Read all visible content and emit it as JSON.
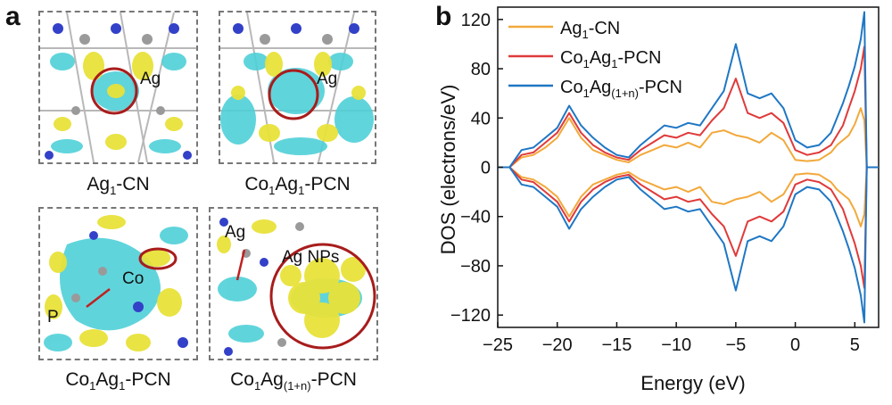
{
  "panel_a": {
    "letter": "a",
    "thumbs": [
      {
        "caption_parts": [
          "Ag",
          "1",
          "-CN"
        ],
        "labels": [
          "Ag"
        ]
      },
      {
        "caption_parts": [
          "Co",
          "1",
          "Ag",
          "1",
          "-PCN"
        ],
        "labels": [
          "Ag"
        ]
      },
      {
        "caption_parts": [
          "Co",
          "1",
          "Ag",
          "1",
          "-PCN"
        ],
        "labels": [
          "Co",
          "P"
        ]
      },
      {
        "caption_parts": [
          "Co",
          "1",
          "Ag",
          "(1+n)",
          "-PCN"
        ],
        "labels": [
          "Ag",
          "Ag NPs"
        ]
      }
    ],
    "colors": {
      "isosurface_yellow": "#e8e23a",
      "isosurface_cyan": "#4fd0d8",
      "atom_blue": "#3340c8",
      "atom_gray": "#9a9a9a",
      "circle_red": "#a81c1c"
    }
  },
  "panel_b": {
    "letter": "b"
  },
  "chart_data": {
    "type": "line",
    "title": "",
    "xlabel": "Energy (eV)",
    "ylabel": "DOS (electrons/eV)",
    "xlim": [
      -25,
      7
    ],
    "ylim": [
      -130,
      130
    ],
    "xticks": [
      -25,
      -20,
      -15,
      -10,
      -5,
      0,
      5
    ],
    "yticks": [
      -120,
      -80,
      -40,
      0,
      40,
      80,
      120
    ],
    "legend_placement": "top-left",
    "series": [
      {
        "name_parts": [
          "Ag",
          "1",
          "-CN"
        ],
        "color": "#f2a93b",
        "x": [
          -25,
          -24,
          -23,
          -22,
          -21,
          -20,
          -19,
          -18,
          -17,
          -16,
          -15,
          -14,
          -13,
          -12,
          -11,
          -10,
          -9,
          -8,
          -7,
          -6,
          -5,
          -4,
          -3,
          -2,
          -1,
          0,
          1,
          2,
          3,
          3.5,
          4,
          4.5,
          5,
          5.5,
          5.8,
          6,
          7
        ],
        "y": [
          0,
          0,
          8,
          10,
          16,
          24,
          40,
          24,
          14,
          10,
          6,
          4,
          10,
          14,
          18,
          16,
          20,
          16,
          28,
          30,
          26,
          24,
          20,
          28,
          22,
          6,
          5,
          6,
          12,
          18,
          22,
          26,
          35,
          48,
          38,
          0,
          0
        ]
      },
      {
        "name_parts": [
          "Co",
          "1",
          "Ag",
          "1",
          "-PCN"
        ],
        "color": "#e03a3a",
        "x": [
          -25,
          -24,
          -23,
          -22,
          -21,
          -20,
          -19,
          -18,
          -17,
          -16,
          -15,
          -14,
          -13,
          -12,
          -11,
          -10,
          -9,
          -8,
          -7,
          -6,
          -5,
          -4,
          -3,
          -2,
          -1,
          0,
          1,
          2,
          3,
          3.5,
          4,
          4.5,
          5,
          5.5,
          5.8,
          6,
          7
        ],
        "y": [
          0,
          0,
          10,
          12,
          20,
          28,
          44,
          28,
          18,
          12,
          8,
          6,
          14,
          20,
          26,
          24,
          28,
          26,
          38,
          48,
          72,
          44,
          40,
          44,
          36,
          14,
          10,
          12,
          18,
          26,
          34,
          48,
          62,
          80,
          98,
          0,
          0
        ]
      },
      {
        "name_parts": [
          "Co",
          "1",
          "Ag",
          "(1+n)",
          "-PCN"
        ],
        "color": "#1f77c4",
        "x": [
          -25,
          -24,
          -23,
          -22,
          -21,
          -20,
          -19,
          -18,
          -17,
          -16,
          -15,
          -14,
          -13,
          -12,
          -11,
          -10,
          -9,
          -8,
          -7,
          -6,
          -5,
          -4,
          -3,
          -2,
          -1,
          0,
          1,
          2,
          3,
          3.5,
          4,
          4.5,
          5,
          5.5,
          5.8,
          6,
          7
        ],
        "y": [
          0,
          0,
          14,
          16,
          24,
          32,
          50,
          34,
          24,
          16,
          10,
          8,
          18,
          26,
          34,
          32,
          36,
          34,
          48,
          62,
          100,
          60,
          56,
          60,
          48,
          22,
          16,
          18,
          28,
          40,
          52,
          66,
          82,
          104,
          126,
          0,
          0
        ]
      }
    ]
  }
}
